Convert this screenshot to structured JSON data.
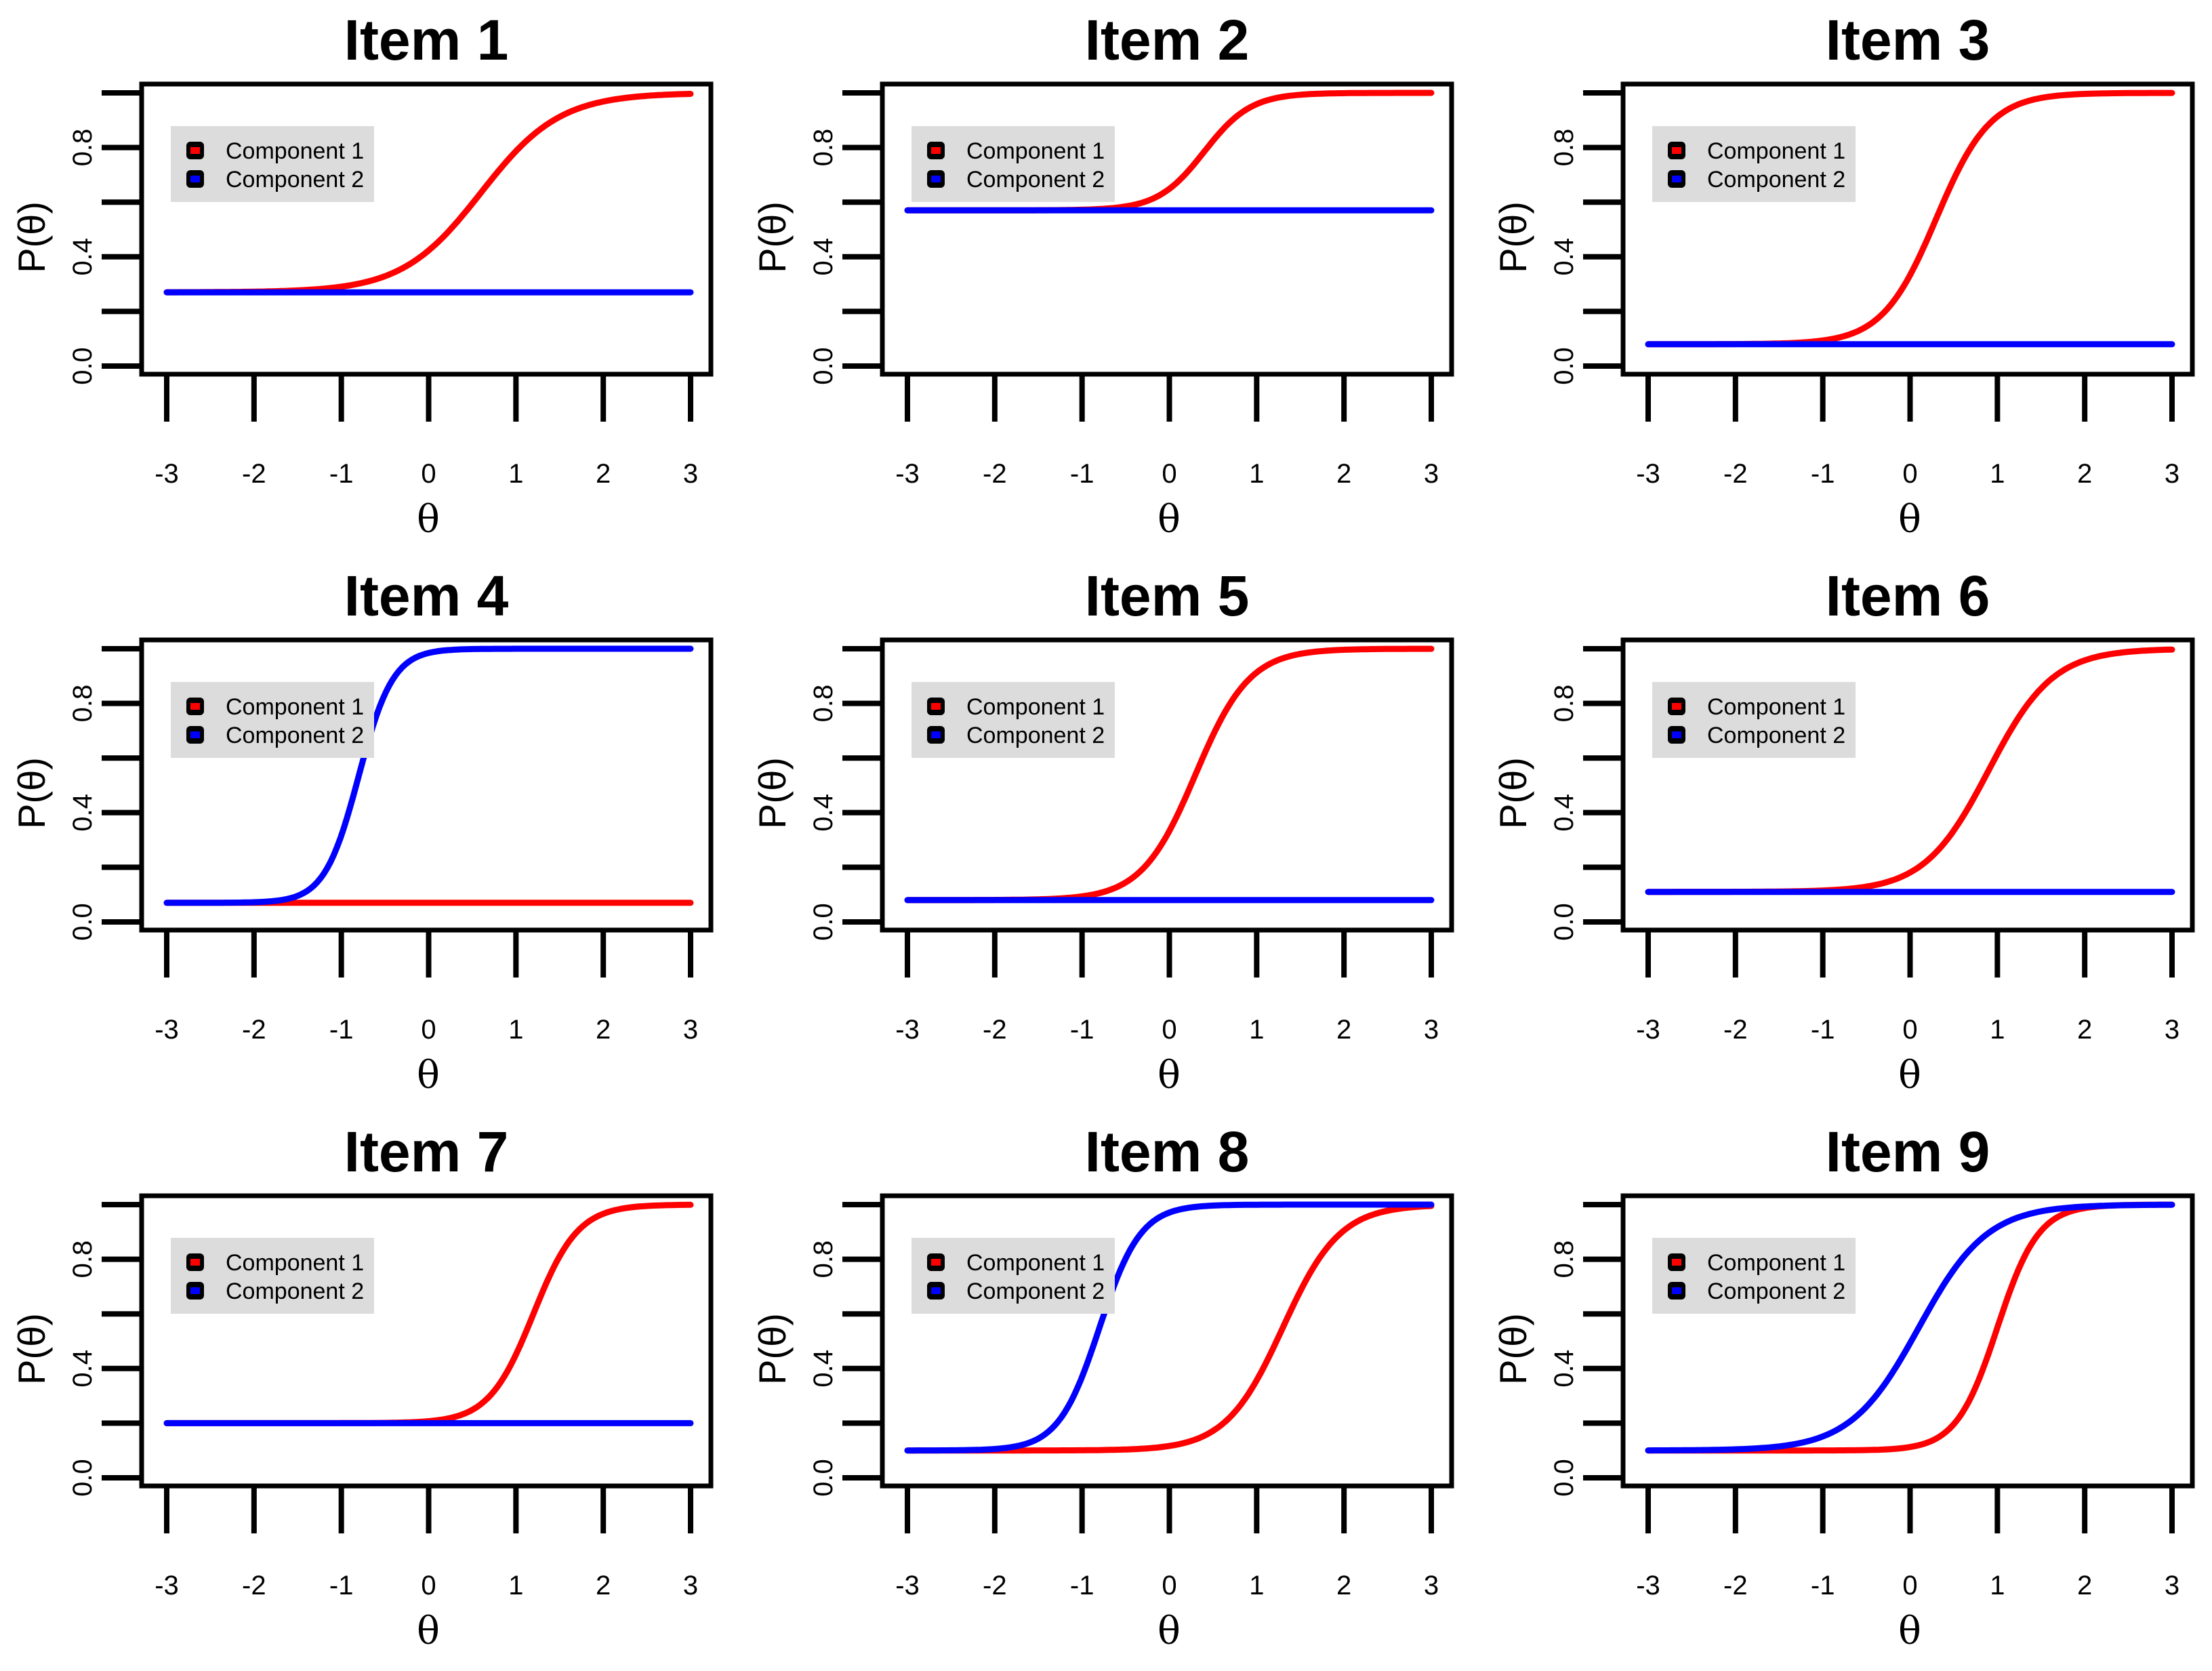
{
  "colors": {
    "component1": "#ff0000",
    "component2": "#0000ff",
    "legend_bg": "#dcdcdc",
    "axis": "#000000"
  },
  "chart_data": [
    {
      "type": "line",
      "title": "Item  1",
      "xlabel": "θ",
      "ylabel": "P(θ)",
      "xlim": [
        -3,
        3
      ],
      "ylim": [
        0,
        1
      ],
      "xticks": [
        "-3",
        "-2",
        "-1",
        "0",
        "1",
        "2",
        "3"
      ],
      "yticks": [
        "0.0",
        "0.4",
        "0.8"
      ],
      "legend": [
        "Component 1",
        "Component 2"
      ],
      "legend_position": "top-left",
      "series": [
        {
          "name": "Component 1",
          "color": "#ff0000",
          "model": "3PL",
          "a": 1.3,
          "b": 0.6,
          "c": 0.27
        },
        {
          "name": "Component 2",
          "color": "#0000ff",
          "model": "constant",
          "value": 0.27
        }
      ]
    },
    {
      "type": "line",
      "title": "Item  2",
      "xlabel": "θ",
      "ylabel": "P(θ)",
      "xlim": [
        -3,
        3
      ],
      "ylim": [
        0,
        1
      ],
      "xticks": [
        "-3",
        "-2",
        "-1",
        "0",
        "1",
        "2",
        "3"
      ],
      "yticks": [
        "0.0",
        "0.4",
        "0.8"
      ],
      "legend": [
        "Component 1",
        "Component 2"
      ],
      "legend_position": "top-left",
      "series": [
        {
          "name": "Component 1",
          "color": "#ff0000",
          "model": "3PL",
          "a": 2.2,
          "b": 0.4,
          "c": 0.57
        },
        {
          "name": "Component 2",
          "color": "#0000ff",
          "model": "constant",
          "value": 0.57
        }
      ]
    },
    {
      "type": "line",
      "title": "Item  3",
      "xlabel": "θ",
      "ylabel": "P(θ)",
      "xlim": [
        -3,
        3
      ],
      "ylim": [
        0,
        1
      ],
      "xticks": [
        "-3",
        "-2",
        "-1",
        "0",
        "1",
        "2",
        "3"
      ],
      "yticks": [
        "0.0",
        "0.4",
        "0.8"
      ],
      "legend": [
        "Component 1",
        "Component 2"
      ],
      "legend_position": "top-left",
      "series": [
        {
          "name": "Component 1",
          "color": "#ff0000",
          "model": "3PL",
          "a": 1.9,
          "b": 0.3,
          "c": 0.08
        },
        {
          "name": "Component 2",
          "color": "#0000ff",
          "model": "constant",
          "value": 0.08
        }
      ]
    },
    {
      "type": "line",
      "title": "Item  4",
      "xlabel": "θ",
      "ylabel": "P(θ)",
      "xlim": [
        -3,
        3
      ],
      "ylim": [
        0,
        1
      ],
      "xticks": [
        "-3",
        "-2",
        "-1",
        "0",
        "1",
        "2",
        "3"
      ],
      "yticks": [
        "0.0",
        "0.4",
        "0.8"
      ],
      "legend": [
        "Component 1",
        "Component 2"
      ],
      "legend_position": "top-left",
      "series": [
        {
          "name": "Component 1",
          "color": "#ff0000",
          "model": "constant",
          "value": 0.07
        },
        {
          "name": "Component 2",
          "color": "#0000ff",
          "model": "3PL",
          "a": 3.0,
          "b": -0.8,
          "c": 0.07
        }
      ]
    },
    {
      "type": "line",
      "title": "Item  5",
      "xlabel": "θ",
      "ylabel": "P(θ)",
      "xlim": [
        -3,
        3
      ],
      "ylim": [
        0,
        1
      ],
      "xticks": [
        "-3",
        "-2",
        "-1",
        "0",
        "1",
        "2",
        "3"
      ],
      "yticks": [
        "0.0",
        "0.4",
        "0.8"
      ],
      "legend": [
        "Component 1",
        "Component 2"
      ],
      "legend_position": "top-left",
      "series": [
        {
          "name": "Component 1",
          "color": "#ff0000",
          "model": "3PL",
          "a": 1.9,
          "b": 0.3,
          "c": 0.08
        },
        {
          "name": "Component 2",
          "color": "#0000ff",
          "model": "constant",
          "value": 0.08
        }
      ]
    },
    {
      "type": "line",
      "title": "Item  6",
      "xlabel": "θ",
      "ylabel": "P(θ)",
      "xlim": [
        -3,
        3
      ],
      "ylim": [
        0,
        1
      ],
      "xticks": [
        "-3",
        "-2",
        "-1",
        "0",
        "1",
        "2",
        "3"
      ],
      "yticks": [
        "0.0",
        "0.4",
        "0.8"
      ],
      "legend": [
        "Component 1",
        "Component 2"
      ],
      "legend_position": "top-left",
      "series": [
        {
          "name": "Component 1",
          "color": "#ff0000",
          "model": "3PL",
          "a": 1.6,
          "b": 0.9,
          "c": 0.11
        },
        {
          "name": "Component 2",
          "color": "#0000ff",
          "model": "constant",
          "value": 0.11
        }
      ]
    },
    {
      "type": "line",
      "title": "Item  7",
      "xlabel": "θ",
      "ylabel": "P(θ)",
      "xlim": [
        -3,
        3
      ],
      "ylim": [
        0,
        1
      ],
      "xticks": [
        "-3",
        "-2",
        "-1",
        "0",
        "1",
        "2",
        "3"
      ],
      "yticks": [
        "0.0",
        "0.4",
        "0.8"
      ],
      "legend": [
        "Component 1",
        "Component 2"
      ],
      "legend_position": "top-left",
      "series": [
        {
          "name": "Component 1",
          "color": "#ff0000",
          "model": "3PL",
          "a": 2.3,
          "b": 1.2,
          "c": 0.2
        },
        {
          "name": "Component 2",
          "color": "#0000ff",
          "model": "constant",
          "value": 0.2
        }
      ]
    },
    {
      "type": "line",
      "title": "Item  8",
      "xlabel": "θ",
      "ylabel": "P(θ)",
      "xlim": [
        -3,
        3
      ],
      "ylim": [
        0,
        1
      ],
      "xticks": [
        "-3",
        "-2",
        "-1",
        "0",
        "1",
        "2",
        "3"
      ],
      "yticks": [
        "0.0",
        "0.4",
        "0.8"
      ],
      "legend": [
        "Component 1",
        "Component 2"
      ],
      "legend_position": "top-left",
      "series": [
        {
          "name": "Component 1",
          "color": "#ff0000",
          "model": "3PL",
          "a": 1.8,
          "b": 1.3,
          "c": 0.1
        },
        {
          "name": "Component 2",
          "color": "#0000ff",
          "model": "3PL",
          "a": 2.5,
          "b": -0.8,
          "c": 0.1
        }
      ]
    },
    {
      "type": "line",
      "title": "Item  9",
      "xlabel": "θ",
      "ylabel": "P(θ)",
      "xlim": [
        -3,
        3
      ],
      "ylim": [
        0,
        1
      ],
      "xticks": [
        "-3",
        "-2",
        "-1",
        "0",
        "1",
        "2",
        "3"
      ],
      "yticks": [
        "0.0",
        "0.4",
        "0.8"
      ],
      "legend": [
        "Component 1",
        "Component 2"
      ],
      "legend_position": "top-left",
      "series": [
        {
          "name": "Component 1",
          "color": "#ff0000",
          "model": "3PL",
          "a": 2.5,
          "b": 1.0,
          "c": 0.1
        },
        {
          "name": "Component 2",
          "color": "#0000ff",
          "model": "3PL",
          "a": 1.5,
          "b": 0.1,
          "c": 0.1
        }
      ]
    }
  ]
}
